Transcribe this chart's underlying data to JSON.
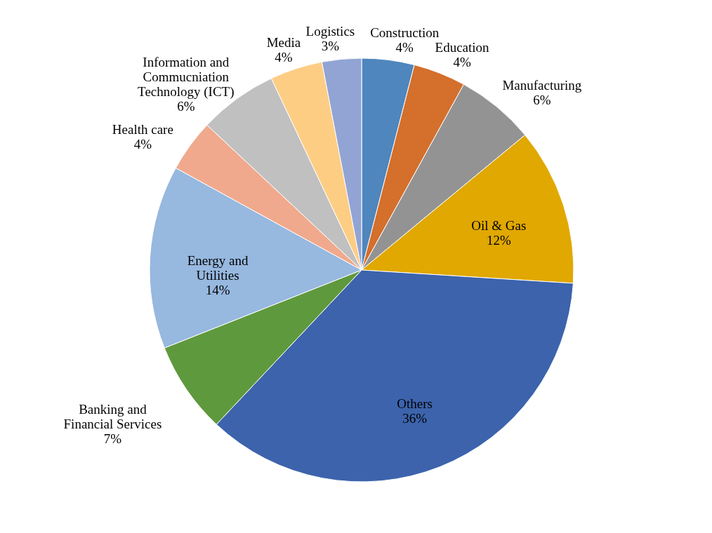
{
  "chart_data": {
    "type": "pie",
    "categories": [
      "Construction",
      "Education",
      "Manufacturing",
      "Oil & Gas",
      "Others",
      "Banking and Financial Services",
      "Energy and Utilities",
      "Health care",
      "Information and Commucniation Technology (ICT)",
      "Media",
      "Logistics"
    ],
    "values": [
      4,
      4,
      6,
      12,
      36,
      7,
      14,
      4,
      6,
      4,
      3
    ],
    "colors": [
      "#4e86bd",
      "#d46f2c",
      "#939393",
      "#e0a800",
      "#3c63ac",
      "#5f993d",
      "#97b8df",
      "#f0a98c",
      "#c0c0c0",
      "#fecd84",
      "#91a4d4"
    ],
    "value_labels": [
      "4%",
      "4%",
      "6%",
      "12%",
      "36%",
      "7%",
      "14%",
      "4%",
      "6%",
      "4%",
      "3%"
    ]
  }
}
